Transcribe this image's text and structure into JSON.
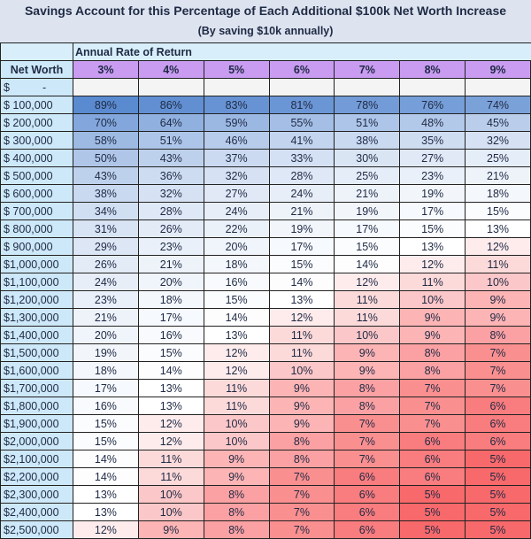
{
  "title": "Savings Account for this Percentage of Each Additional $100k Net Worth Increase",
  "subtitle": "(By saving $10k annually)",
  "colors": {
    "title_bg": "#dde4f0",
    "header_purple": "#c99cf1",
    "first_col": "#cde8f8",
    "scale_high": "#5a8ad0",
    "scale_mid": "#ffffff",
    "scale_low": "#f8696b"
  },
  "chart_data": {
    "type": "heatmap",
    "group_label": "Annual Rate of Return",
    "row_header": "Net Worth",
    "columns": [
      "3%",
      "4%",
      "5%",
      "6%",
      "7%",
      "8%",
      "9%"
    ],
    "blank_row_label": "$ -",
    "rows": [
      "$ 100,000",
      "$ 200,000",
      "$ 300,000",
      "$ 400,000",
      "$ 500,000",
      "$ 600,000",
      "$ 700,000",
      "$ 800,000",
      "$ 900,000",
      "$1,000,000",
      "$1,100,000",
      "$1,200,000",
      "$1,300,000",
      "$1,400,000",
      "$1,500,000",
      "$1,600,000",
      "$1,700,000",
      "$1,800,000",
      "$1,900,000",
      "$2,000,000",
      "$2,100,000",
      "$2,200,000",
      "$2,300,000",
      "$2,400,000",
      "$2,500,000"
    ],
    "values": [
      [
        89,
        86,
        83,
        81,
        78,
        76,
        74
      ],
      [
        70,
        64,
        59,
        55,
        51,
        48,
        45
      ],
      [
        58,
        51,
        46,
        41,
        38,
        35,
        32
      ],
      [
        50,
        43,
        37,
        33,
        30,
        27,
        25
      ],
      [
        43,
        36,
        32,
        28,
        25,
        23,
        21
      ],
      [
        38,
        32,
        27,
        24,
        21,
        19,
        18
      ],
      [
        34,
        28,
        24,
        21,
        19,
        17,
        15
      ],
      [
        31,
        26,
        22,
        19,
        17,
        15,
        13
      ],
      [
        29,
        23,
        20,
        17,
        15,
        13,
        12
      ],
      [
        26,
        21,
        18,
        15,
        14,
        12,
        11
      ],
      [
        24,
        20,
        16,
        14,
        12,
        11,
        10
      ],
      [
        23,
        18,
        15,
        13,
        11,
        10,
        9
      ],
      [
        21,
        17,
        14,
        12,
        11,
        9,
        9
      ],
      [
        20,
        16,
        13,
        11,
        10,
        9,
        8
      ],
      [
        19,
        15,
        12,
        11,
        9,
        8,
        7
      ],
      [
        18,
        14,
        12,
        10,
        9,
        8,
        7
      ],
      [
        17,
        13,
        11,
        9,
        8,
        7,
        7
      ],
      [
        16,
        13,
        11,
        9,
        8,
        7,
        6
      ],
      [
        15,
        12,
        10,
        9,
        7,
        7,
        6
      ],
      [
        15,
        12,
        10,
        8,
        7,
        6,
        6
      ],
      [
        14,
        11,
        9,
        8,
        7,
        6,
        5
      ],
      [
        14,
        11,
        9,
        7,
        6,
        6,
        5
      ],
      [
        13,
        10,
        8,
        7,
        6,
        5,
        5
      ],
      [
        13,
        10,
        8,
        7,
        6,
        5,
        5
      ],
      [
        12,
        9,
        8,
        7,
        6,
        5,
        5
      ]
    ],
    "unit": "%"
  }
}
